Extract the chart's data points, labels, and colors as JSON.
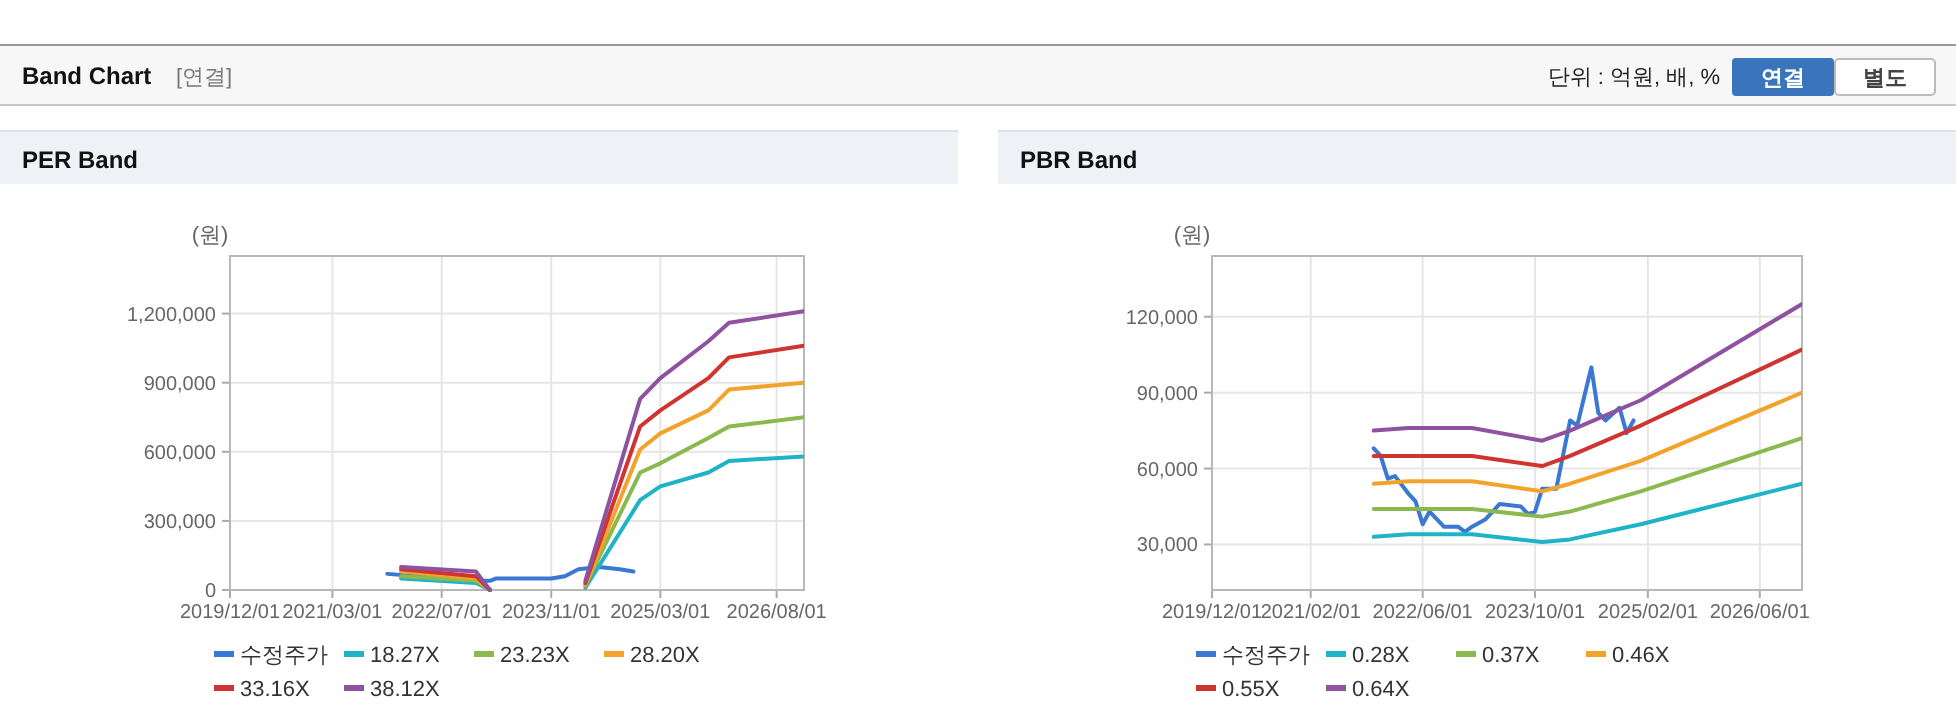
{
  "chart_data": [
    {
      "type": "other",
      "title": "Band Chart",
      "annotations": [
        "[연결]",
        "단위 : 억원, 배, %",
        "연결",
        "별도"
      ]
    },
    {
      "type": "line",
      "title": "PER Band",
      "ylabel": "(원)",
      "grid": true,
      "legend": "bottom",
      "xlim": [
        "2019-12-01",
        "2026-12-01"
      ],
      "ylim": [
        0,
        1450000
      ],
      "xticks": [
        {
          "value": "2019-12-01",
          "label": "2019/12/01"
        },
        {
          "value": "2021-03-01",
          "label": "2021/03/01"
        },
        {
          "value": "2022-07-01",
          "label": "2022/07/01"
        },
        {
          "value": "2023-11-01",
          "label": "2023/11/01"
        },
        {
          "value": "2025-03-01",
          "label": "2025/03/01"
        },
        {
          "value": "2026-08-01",
          "label": "2026/08/01"
        }
      ],
      "yticks": [
        0,
        {
          "value": 300000,
          "label": "300,000"
        },
        {
          "value": 600000,
          "label": "600,000"
        },
        {
          "value": 900000,
          "label": "900,000"
        },
        {
          "value": 1200000,
          "label": "1,200,000"
        }
      ],
      "x": [
        "2022-01",
        "2022-12",
        "2023-02",
        "2023-06",
        "2024-04",
        "2024-12",
        "2025-03",
        "2025-10",
        "2026-01",
        "2026-12"
      ],
      "series": [
        {
          "name": "수정주가",
          "color": "#3a78d4",
          "x": [
            "2021-11",
            "2022-12",
            "2023-02",
            "2023-03",
            "2023-11",
            "2024-01",
            "2024-03",
            "2024-06",
            "2024-09",
            "2024-11"
          ],
          "values": [
            70000,
            40000,
            40000,
            50000,
            50000,
            60000,
            90000,
            100000,
            90000,
            80000
          ]
        },
        {
          "name": "18.27X",
          "color": "#1fb3c6",
          "values": [
            50000,
            30000,
            0,
            null,
            10000,
            390000,
            450000,
            510000,
            560000,
            580000
          ]
        },
        {
          "name": "23.23X",
          "color": "#8bb94f",
          "values": [
            60000,
            40000,
            0,
            null,
            20000,
            510000,
            550000,
            660000,
            710000,
            750000
          ]
        },
        {
          "name": "28.20X",
          "color": "#f3a32b",
          "values": [
            80000,
            50000,
            0,
            null,
            20000,
            610000,
            680000,
            780000,
            870000,
            900000
          ]
        },
        {
          "name": "33.16X",
          "color": "#d03430",
          "values": [
            90000,
            60000,
            0,
            null,
            30000,
            710000,
            780000,
            920000,
            1010000,
            1060000
          ]
        },
        {
          "name": "38.12X",
          "color": "#8e52a1",
          "values": [
            100000,
            80000,
            0,
            null,
            40000,
            830000,
            920000,
            1080000,
            1160000,
            1210000
          ]
        }
      ]
    },
    {
      "type": "line",
      "title": "PBR Band",
      "ylabel": "(원)",
      "grid": true,
      "legend": "bottom",
      "xlim": [
        "2019-12-01",
        "2026-12-01"
      ],
      "ylim": [
        12000,
        144000
      ],
      "xticks": [
        {
          "value": "2019-12-01",
          "label": "2019/12/01"
        },
        {
          "value": "2021-02-01",
          "label": "2021/02/01"
        },
        {
          "value": "2022-06-01",
          "label": "2022/06/01"
        },
        {
          "value": "2023-10-01",
          "label": "2023/10/01"
        },
        {
          "value": "2025-02-01",
          "label": "2025/02/01"
        },
        {
          "value": "2026-06-01",
          "label": "2026/06/01"
        }
      ],
      "yticks": [
        {
          "value": 30000,
          "label": "30,000"
        },
        {
          "value": 60000,
          "label": "60,000"
        },
        {
          "value": 90000,
          "label": "90,000"
        },
        {
          "value": 120000,
          "label": "120,000"
        }
      ],
      "x": [
        "2021-11",
        "2022-04",
        "2023-01",
        "2023-11",
        "2024-03",
        "2025-01",
        "2026-12"
      ],
      "series": [
        {
          "name": "수정주가",
          "color": "#3a78d4",
          "x": [
            "2021-11",
            "2021-12",
            "2022-01",
            "2022-02",
            "2022-04",
            "2022-05",
            "2022-06",
            "2022-07",
            "2022-09",
            "2022-11",
            "2022-12",
            "2023-01",
            "2023-03",
            "2023-05",
            "2023-08",
            "2023-09",
            "2023-10",
            "2023-11",
            "2024-01",
            "2024-03",
            "2024-04",
            "2024-06",
            "2024-07",
            "2024-08",
            "2024-10",
            "2024-11",
            "2024-12"
          ],
          "values": [
            68000,
            65000,
            56000,
            57000,
            50000,
            47000,
            38000,
            43000,
            37000,
            37000,
            35000,
            37000,
            40000,
            46000,
            45000,
            42000,
            43000,
            52000,
            52000,
            79000,
            77000,
            100000,
            82000,
            79000,
            84000,
            74000,
            79000
          ]
        },
        {
          "name": "0.28X",
          "color": "#1fb3c6",
          "values": [
            33000,
            34000,
            34000,
            31000,
            32000,
            38000,
            54000
          ]
        },
        {
          "name": "0.37X",
          "color": "#8bb94f",
          "values": [
            44000,
            44000,
            44000,
            41000,
            43000,
            51000,
            72000
          ]
        },
        {
          "name": "0.46X",
          "color": "#f3a32b",
          "values": [
            54000,
            55000,
            55000,
            51000,
            54000,
            63000,
            90000
          ]
        },
        {
          "name": "0.55X",
          "color": "#d03430",
          "values": [
            65000,
            65000,
            65000,
            61000,
            65000,
            77000,
            107000
          ]
        },
        {
          "name": "0.64X",
          "color": "#8e52a1",
          "values": [
            75000,
            76000,
            76000,
            71000,
            75000,
            87000,
            125000
          ]
        }
      ]
    }
  ]
}
